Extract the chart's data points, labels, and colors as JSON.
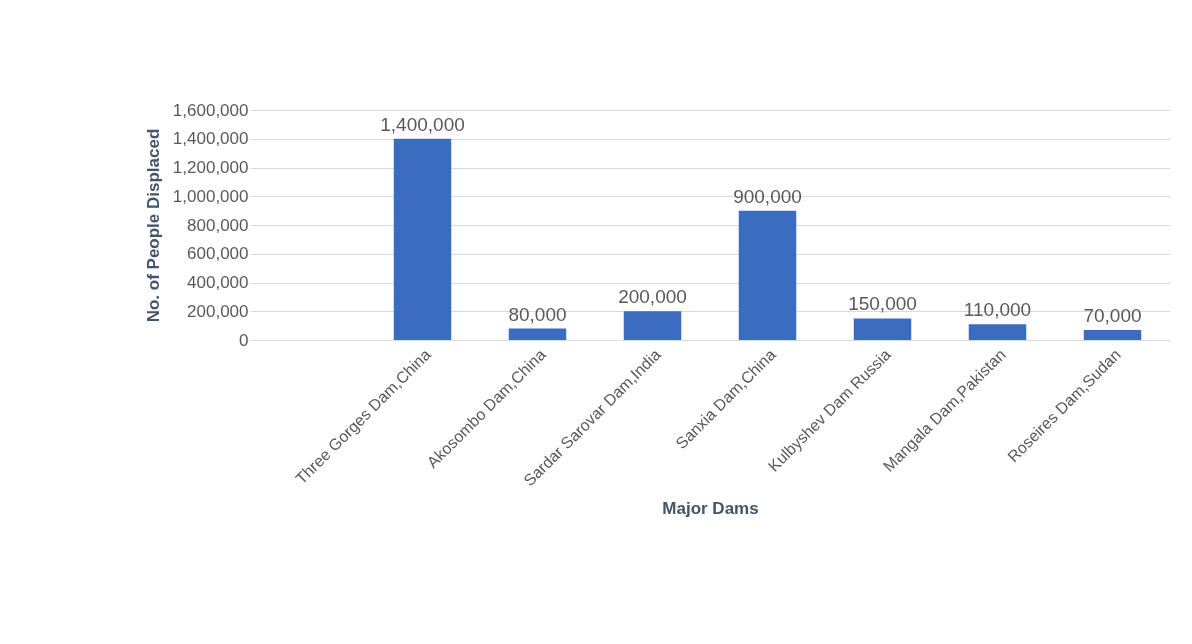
{
  "chart_data": {
    "type": "bar",
    "xlabel": "Major Dams",
    "ylabel": "No. of People Displaced",
    "categories": [
      null,
      "Three Gorges Dam,China",
      "Akosombo Dam,China",
      "Sardar Sarovar Dam,India",
      "Sanxia Dam,China",
      "Kulbyshev Dam Russia",
      "Mangala Dam,Pakistan",
      "Roseires Dam,Sudan"
    ],
    "values": [
      null,
      1400000,
      80000,
      200000,
      900000,
      150000,
      110000,
      70000
    ],
    "value_labels": [
      null,
      "1,400,000",
      "80,000",
      "200,000",
      "900,000",
      "150,000",
      "110,000",
      "70,000"
    ],
    "color": "#3b6dbf",
    "ylim": [
      0,
      1600000
    ],
    "yticks": [
      0,
      {
        "value": 200000,
        "label": "200,000"
      },
      {
        "value": 400000,
        "label": "400,000"
      },
      {
        "value": 600000,
        "label": "600,000"
      },
      {
        "value": 800000,
        "label": "800,000"
      },
      {
        "value": 1000000,
        "label": "1,000,000"
      },
      {
        "value": 1200000,
        "label": "1,200,000"
      },
      {
        "value": 1400000,
        "label": "1,400,000"
      },
      {
        "value": 1600000,
        "label": "1,600,000"
      }
    ],
    "grid": "y"
  }
}
